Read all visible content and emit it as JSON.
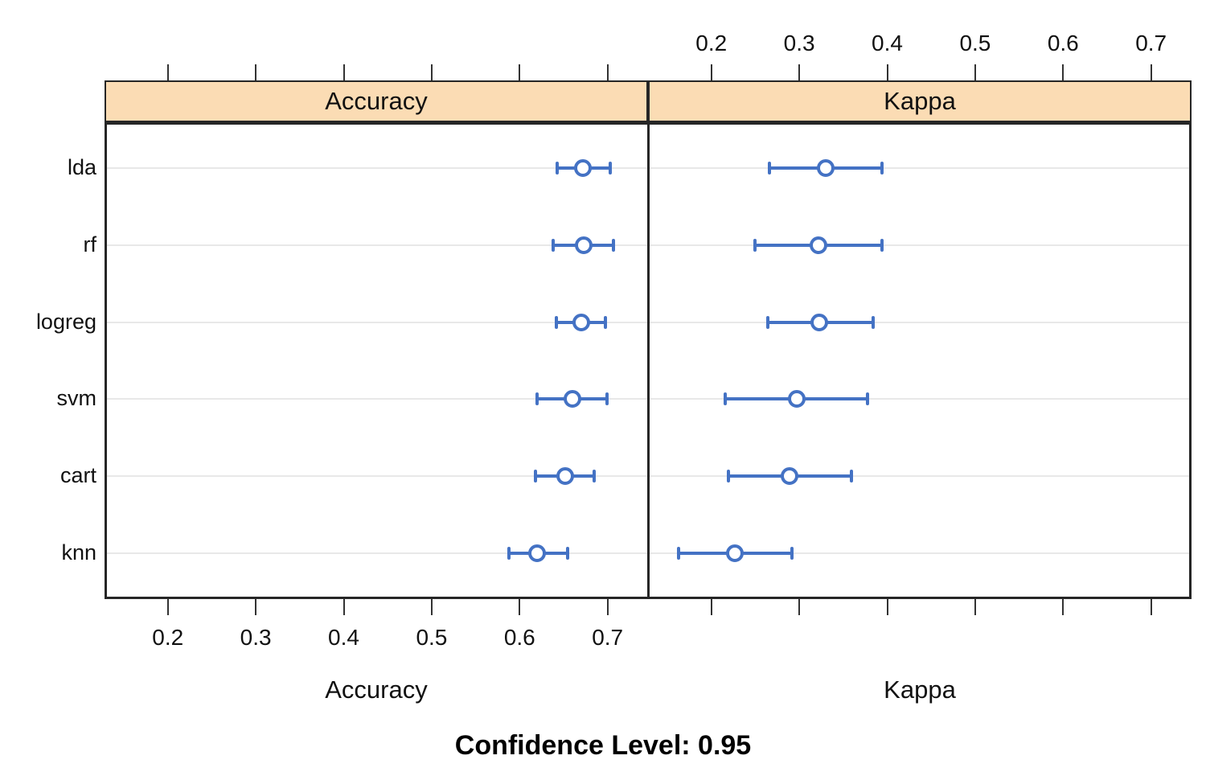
{
  "figure": {
    "footer": "Confidence Level: 0.95"
  },
  "chart_data": {
    "type": "scatter",
    "subtype": "dotplot-with-confidence-intervals",
    "title": "",
    "footer": "Confidence Level: 0.95",
    "confidence_level": 0.95,
    "categories": [
      "lda",
      "rf",
      "logreg",
      "svm",
      "cart",
      "knn"
    ],
    "xlim": [
      0.128,
      0.746
    ],
    "xticks": [
      0.2,
      0.3,
      0.4,
      0.5,
      0.6,
      0.7
    ],
    "xtick_labels": [
      "0.2",
      "0.3",
      "0.4",
      "0.5",
      "0.6",
      "0.7"
    ],
    "grid": "horizontal-only",
    "legend": "none",
    "panels": [
      {
        "strip_label": "Accuracy",
        "axis_label": "Accuracy",
        "top_axis_labels": false,
        "bottom_axis_labels": true,
        "series": [
          {
            "model": "lda",
            "mean": 0.672,
            "lower": 0.643,
            "upper": 0.703
          },
          {
            "model": "rf",
            "mean": 0.673,
            "lower": 0.638,
            "upper": 0.707
          },
          {
            "model": "logreg",
            "mean": 0.67,
            "lower": 0.642,
            "upper": 0.698
          },
          {
            "model": "svm",
            "mean": 0.66,
            "lower": 0.62,
            "upper": 0.699
          },
          {
            "model": "cart",
            "mean": 0.652,
            "lower": 0.618,
            "upper": 0.685
          },
          {
            "model": "knn",
            "mean": 0.62,
            "lower": 0.588,
            "upper": 0.655
          }
        ]
      },
      {
        "strip_label": "Kappa",
        "axis_label": "Kappa",
        "top_axis_labels": true,
        "bottom_axis_labels": false,
        "series": [
          {
            "model": "lda",
            "mean": 0.33,
            "lower": 0.266,
            "upper": 0.394
          },
          {
            "model": "rf",
            "mean": 0.322,
            "lower": 0.25,
            "upper": 0.394
          },
          {
            "model": "logreg",
            "mean": 0.323,
            "lower": 0.264,
            "upper": 0.384
          },
          {
            "model": "svm",
            "mean": 0.297,
            "lower": 0.216,
            "upper": 0.378
          },
          {
            "model": "cart",
            "mean": 0.289,
            "lower": 0.219,
            "upper": 0.359
          },
          {
            "model": "knn",
            "mean": 0.227,
            "lower": 0.163,
            "upper": 0.292
          }
        ]
      }
    ],
    "colors": {
      "point": "#4472c4",
      "strip_fill": "#fbdcb4",
      "grid": "#e8e8e8",
      "border": "#262626",
      "background": "#ffffff",
      "text": "#000000"
    }
  }
}
